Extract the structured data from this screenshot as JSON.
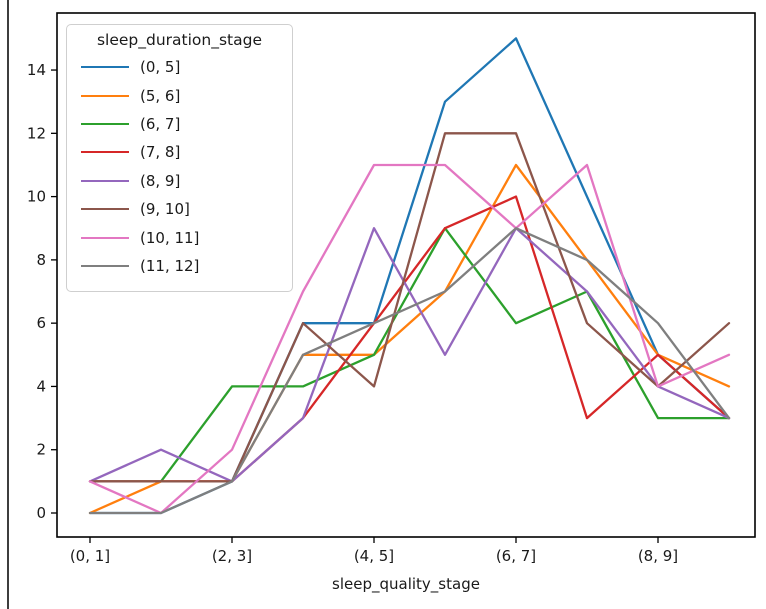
{
  "chart_data": {
    "type": "line",
    "title": "",
    "xlabel": "sleep_quality_stage",
    "ylabel": "",
    "legend_title": "sleep_duration_stage",
    "legend_position": "upper-left",
    "grid": false,
    "categories": [
      "(0, 1]",
      "(1, 2]",
      "(2, 3]",
      "(3, 4]",
      "(4, 5]",
      "(5, 6]",
      "(6, 7]",
      "(7, 8]",
      "(8, 9]",
      "(9, 10]"
    ],
    "xtick_indices": [
      0,
      2,
      4,
      6,
      8
    ],
    "xtick_labels": [
      "(0, 1]",
      "(2, 3]",
      "(4, 5]",
      "(6, 7]",
      "(8, 9]"
    ],
    "yticks": [
      0,
      2,
      4,
      6,
      8,
      10,
      12,
      14
    ],
    "ylim": [
      -0.75,
      15.75
    ],
    "series": [
      {
        "name": "(0, 5]",
        "color": "#1f77b4",
        "values": [
          0,
          0,
          1,
          6,
          6,
          13,
          15,
          10,
          5,
          3
        ]
      },
      {
        "name": "(5, 6]",
        "color": "#ff7f0e",
        "values": [
          0,
          1,
          1,
          5,
          5,
          7,
          11,
          8,
          5,
          4
        ]
      },
      {
        "name": "(6, 7]",
        "color": "#2ca02c",
        "values": [
          1,
          1,
          4,
          4,
          5,
          9,
          6,
          7,
          3,
          3
        ]
      },
      {
        "name": "(7, 8]",
        "color": "#d62728",
        "values": [
          1,
          1,
          1,
          3,
          6,
          9,
          10,
          3,
          5,
          3
        ]
      },
      {
        "name": "(8, 9]",
        "color": "#9467bd",
        "values": [
          1,
          2,
          1,
          3,
          9,
          5,
          9,
          7,
          4,
          3
        ]
      },
      {
        "name": "(9, 10]",
        "color": "#8c564b",
        "values": [
          1,
          1,
          1,
          6,
          4,
          12,
          12,
          6,
          4,
          6
        ]
      },
      {
        "name": "(10, 11]",
        "color": "#e377c2",
        "values": [
          1,
          0,
          2,
          7,
          11,
          11,
          9,
          11,
          4,
          5
        ]
      },
      {
        "name": "(11, 12]",
        "color": "#7f7f7f",
        "values": [
          0,
          0,
          1,
          5,
          6,
          7,
          9,
          8,
          6,
          3
        ]
      }
    ]
  }
}
